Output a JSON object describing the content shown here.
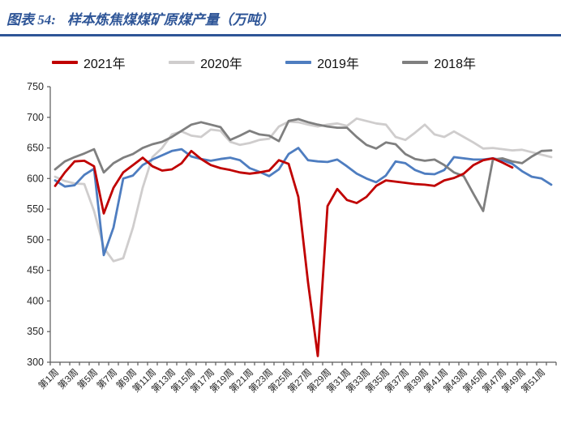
{
  "figure": {
    "label": "图表 54:",
    "title": "样本炼焦煤煤矿原煤产量（万吨）"
  },
  "colors": {
    "title_blue": "#2E5597",
    "divider_blue": "#2E5597",
    "axis_gray": "#595959",
    "series_2021": "#C00000",
    "series_2020": "#CFCDCD",
    "series_2019": "#4E7DC0",
    "series_2018": "#7F7F7F"
  },
  "chart_data": {
    "type": "line",
    "title": "样本炼焦煤煤矿原煤产量（万吨）",
    "unit": "万吨",
    "x_count": 52,
    "x_tick_labels": [
      "第1周",
      "第3周",
      "第5周",
      "第7周",
      "第9周",
      "第11周",
      "第13周",
      "第15周",
      "第17周",
      "第19周",
      "第21周",
      "第23周",
      "第25周",
      "第27周",
      "第29周",
      "第31周",
      "第33周",
      "第35周",
      "第37周",
      "第39周",
      "第41周",
      "第43周",
      "第45周",
      "第47周",
      "第49周",
      "第51周"
    ],
    "ylim": [
      300,
      750
    ],
    "y_ticks": [
      300,
      350,
      400,
      450,
      500,
      550,
      600,
      650,
      700,
      750
    ],
    "grid": false,
    "legend_position": "top",
    "series": [
      {
        "name": "2021年",
        "color": "#C00000",
        "values": [
          588,
          610,
          628,
          629,
          620,
          543,
          585,
          610,
          622,
          634,
          620,
          613,
          615,
          625,
          645,
          632,
          622,
          617,
          614,
          610,
          608,
          610,
          613,
          630,
          624,
          570,
          430,
          310,
          555,
          583,
          565,
          560,
          570,
          588,
          597,
          595,
          593,
          591,
          590,
          588,
          597,
          601,
          608,
          622,
          630,
          633,
          626,
          618
        ]
      },
      {
        "name": "2020年",
        "color": "#CFCDCD",
        "values": [
          603,
          596,
          592,
          591,
          547,
          487,
          465,
          470,
          520,
          585,
          635,
          650,
          672,
          677,
          670,
          668,
          680,
          678,
          660,
          655,
          658,
          663,
          665,
          685,
          693,
          692,
          688,
          685,
          688,
          690,
          686,
          698,
          694,
          690,
          688,
          668,
          663,
          675,
          688,
          672,
          668,
          677,
          668,
          659,
          649,
          650,
          648,
          646,
          647,
          643,
          639,
          635
        ]
      },
      {
        "name": "2019年",
        "color": "#4E7DC0",
        "values": [
          597,
          587,
          589,
          606,
          616,
          475,
          520,
          600,
          605,
          622,
          631,
          638,
          645,
          648,
          636,
          632,
          629,
          632,
          634,
          630,
          617,
          611,
          604,
          615,
          640,
          650,
          630,
          628,
          627,
          631,
          620,
          608,
          600,
          594,
          605,
          628,
          625,
          614,
          608,
          607,
          614,
          635,
          633,
          631,
          631,
          633,
          630,
          624,
          612,
          603,
          600,
          590
        ]
      },
      {
        "name": "2018年",
        "color": "#7F7F7F",
        "values": [
          615,
          628,
          635,
          641,
          648,
          610,
          625,
          634,
          640,
          650,
          656,
          660,
          668,
          678,
          688,
          692,
          688,
          684,
          663,
          670,
          678,
          672,
          670,
          661,
          694,
          697,
          692,
          688,
          685,
          683,
          683,
          668,
          655,
          649,
          659,
          656,
          640,
          632,
          629,
          631,
          622,
          610,
          604,
          575,
          547,
          631,
          633,
          628,
          625,
          636,
          645,
          646
        ]
      }
    ],
    "draw_order": [
      1,
      2,
      3,
      0
    ],
    "line_width": 2.8
  }
}
